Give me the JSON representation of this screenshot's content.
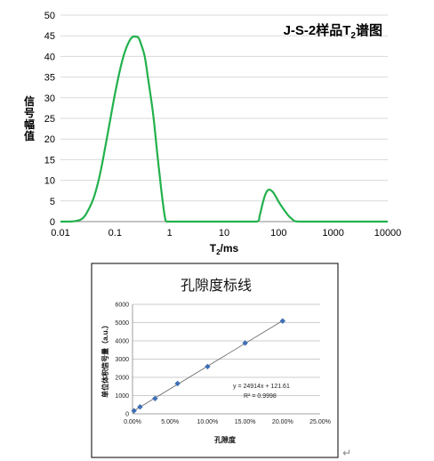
{
  "chart_data": [
    {
      "type": "line",
      "title_parts": {
        "main": "J-S-2样品T",
        "sub": "2",
        "tail": "谱图"
      },
      "ylabel": "信号幅值",
      "xlabel_parts": {
        "main": "T",
        "sub": "2",
        "tail": "/ms"
      },
      "x_scale": "log",
      "xlim": [
        0.01,
        10000
      ],
      "ylim": [
        0,
        50
      ],
      "x_ticks": [
        "0.01",
        "0.1",
        "1",
        "10",
        "100",
        "1000",
        "10000"
      ],
      "y_ticks": [
        "0",
        "5",
        "10",
        "15",
        "20",
        "25",
        "30",
        "35",
        "40",
        "45",
        "50"
      ],
      "grid": "horizontal",
      "line_color": "#22b14c",
      "series": [
        {
          "x": [
            0.01,
            0.015,
            0.02,
            0.025,
            0.03,
            0.04,
            0.05,
            0.06,
            0.08,
            0.1,
            0.13,
            0.16,
            0.2,
            0.24,
            0.27,
            0.3,
            0.35,
            0.4,
            0.5,
            0.6,
            0.7,
            0.8,
            0.85,
            0.9,
            1,
            2,
            5,
            10,
            20,
            40,
            45,
            50,
            55,
            60,
            65,
            70,
            75,
            80,
            90,
            100,
            120,
            150,
            180,
            200,
            250,
            300,
            1000,
            10000
          ],
          "y": [
            0,
            0,
            0.2,
            0.7,
            2,
            5.5,
            10,
            15,
            24,
            31,
            38,
            42,
            44.5,
            44.8,
            44.5,
            43,
            40,
            35,
            26,
            16,
            8,
            2,
            0.2,
            0,
            0,
            0,
            0,
            0,
            0,
            0,
            1.5,
            4,
            6,
            7.2,
            7.7,
            7.7,
            7.4,
            7,
            5.9,
            4.8,
            3.2,
            1.5,
            0.5,
            0.1,
            0,
            0,
            0,
            0
          ]
        }
      ]
    },
    {
      "type": "scatter",
      "title": "孔隙度标线",
      "xlabel": "孔隙度",
      "ylabel": "单位体积信号量（a.u.）",
      "xlim": [
        0,
        25
      ],
      "ylim": [
        0,
        6000
      ],
      "x_ticks": [
        "0.00%",
        "5.00%",
        "10.00%",
        "15.00%",
        "20.00%",
        "25.00%"
      ],
      "y_ticks": [
        "0",
        "1000",
        "2000",
        "3000",
        "4000",
        "5000",
        "6000"
      ],
      "grid": "horizontal",
      "marker_color": "#3f6fb5",
      "trendline_color": "#666666",
      "series": [
        {
          "x": [
            0.2,
            1.0,
            3.0,
            6.0,
            10.0,
            15.0,
            20.0
          ],
          "y": [
            170,
            380,
            840,
            1660,
            2590,
            3880,
            5090
          ]
        }
      ],
      "trendline": {
        "slope": 24914,
        "intercept": 121.61
      },
      "equation": "y = 24914x + 121.61",
      "r2_label": "R² = 0.9998"
    }
  ],
  "paragraph_mark": "↵"
}
